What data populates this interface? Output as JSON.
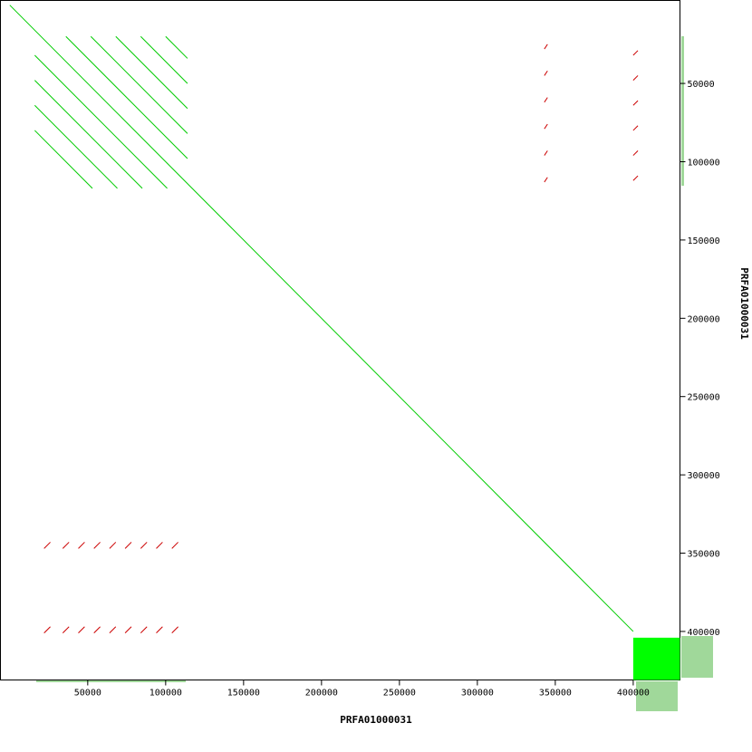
{
  "chart_data": {
    "type": "dotplot",
    "x_label": "PRFA01000031",
    "y_label": "PRFA01000031",
    "xlim": [
      -6000,
      430000
    ],
    "ylim": [
      -3000,
      431000
    ],
    "xticks": [
      50000,
      100000,
      150000,
      200000,
      250000,
      300000,
      350000,
      400000
    ],
    "yticks": [
      50000,
      100000,
      150000,
      200000,
      250000,
      300000,
      350000,
      400000
    ],
    "forward": {
      "color": "#00cc00",
      "segments": [
        [
          0,
          0,
          400000,
          400000
        ],
        [
          16000,
          80000,
          53000,
          117000
        ],
        [
          16000,
          64000,
          69000,
          117000
        ],
        [
          16000,
          48000,
          85000,
          117000
        ],
        [
          16000,
          32000,
          101000,
          117000
        ],
        [
          36000,
          20000,
          114000,
          98000
        ],
        [
          52000,
          20000,
          114000,
          82000
        ],
        [
          68000,
          20000,
          114000,
          66000
        ],
        [
          84000,
          20000,
          114000,
          50000
        ],
        [
          100000,
          20000,
          114000,
          34000
        ]
      ],
      "blocks": [
        [
          400000,
          404000,
          430000,
          431000
        ]
      ]
    },
    "reverse": {
      "color": "#cc0000",
      "segments": [
        [
          22000,
          347000,
          26000,
          343000
        ],
        [
          34000,
          347000,
          38000,
          343000
        ],
        [
          44000,
          347000,
          48000,
          343000
        ],
        [
          54000,
          347000,
          58000,
          343000
        ],
        [
          64000,
          347000,
          68000,
          343000
        ],
        [
          74000,
          347000,
          78000,
          343000
        ],
        [
          84000,
          347000,
          88000,
          343000
        ],
        [
          94000,
          347000,
          98000,
          343000
        ],
        [
          104000,
          347000,
          108000,
          343000
        ],
        [
          22000,
          401000,
          26000,
          397000
        ],
        [
          34000,
          401000,
          38000,
          397000
        ],
        [
          44000,
          401000,
          48000,
          397000
        ],
        [
          54000,
          401000,
          58000,
          397000
        ],
        [
          64000,
          401000,
          68000,
          397000
        ],
        [
          74000,
          401000,
          78000,
          397000
        ],
        [
          84000,
          401000,
          88000,
          397000
        ],
        [
          94000,
          401000,
          98000,
          397000
        ],
        [
          104000,
          401000,
          108000,
          397000
        ],
        [
          400000,
          32000,
          403000,
          29000
        ],
        [
          400000,
          48000,
          403000,
          45000
        ],
        [
          400000,
          64000,
          403000,
          61000
        ],
        [
          400000,
          80000,
          403000,
          77000
        ],
        [
          400000,
          96000,
          403000,
          93000
        ],
        [
          400000,
          112000,
          403000,
          109000
        ],
        [
          343000,
          28000,
          345000,
          25000
        ],
        [
          343000,
          45000,
          345000,
          42000
        ],
        [
          343000,
          62000,
          345000,
          59000
        ],
        [
          343000,
          79000,
          345000,
          76000
        ],
        [
          343000,
          96000,
          345000,
          93000
        ],
        [
          343000,
          113000,
          345000,
          110000
        ]
      ]
    }
  }
}
